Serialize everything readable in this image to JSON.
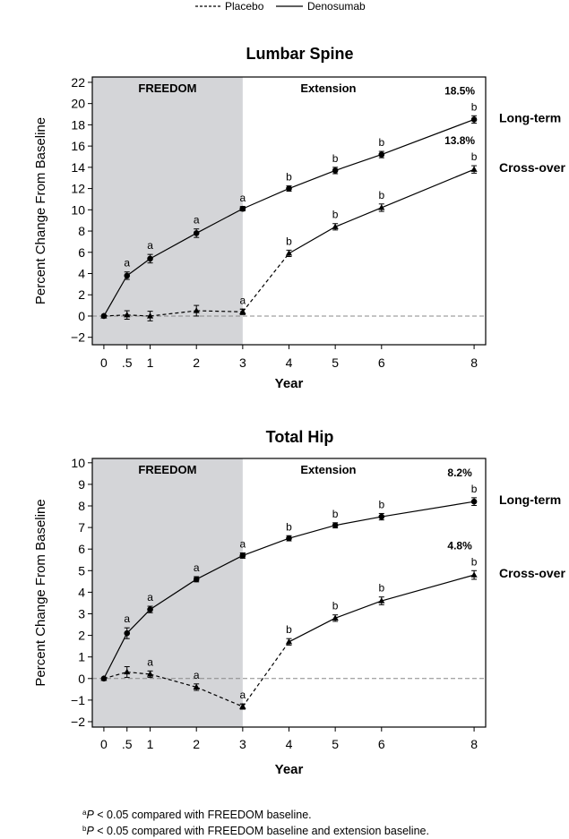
{
  "legend": {
    "placebo_label": "Placebo",
    "denosumab_label": "Denosumab"
  },
  "footnotes": {
    "a_mark": "a",
    "a_p": "P",
    "a_text": " < 0.05 compared with FREEDOM baseline.",
    "b_mark": "b",
    "b_p": "P",
    "b_text": " < 0.05 compared with FREEDOM baseline and extension baseline."
  },
  "colors": {
    "shade": "#d4d5d8",
    "line": "#000000",
    "reference_line": "#888888"
  },
  "chart_data": [
    {
      "type": "line",
      "title": "Lumbar Spine",
      "xlabel": "Year",
      "ylabel": "Percent Change From Baseline",
      "xlim": [
        -0.25,
        8.25
      ],
      "ylim": [
        -2.7,
        22.5
      ],
      "x_ticks": [
        0,
        0.5,
        1,
        2,
        3,
        4,
        5,
        6,
        8
      ],
      "x_tick_labels": [
        "0",
        ".5",
        "1",
        "2",
        "3",
        "4",
        "5",
        "6",
        "8"
      ],
      "y_ticks": [
        -2,
        0,
        2,
        4,
        6,
        8,
        10,
        12,
        14,
        16,
        18,
        20,
        22
      ],
      "y_tick_labels": [
        "−2",
        "0",
        "2",
        "4",
        "6",
        "8",
        "10",
        "12",
        "14",
        "16",
        "18",
        "20",
        "22"
      ],
      "shaded_region": {
        "x": [
          0,
          3
        ],
        "label": "FREEDOM"
      },
      "extension_label": "Extension",
      "reference_y": 0,
      "series": [
        {
          "name": "Denosumab",
          "style": "solid",
          "marker": "circle",
          "x": [
            0,
            0.5,
            1,
            2,
            3
          ],
          "y": [
            0,
            3.8,
            5.4,
            7.8,
            10.1
          ],
          "err": [
            0,
            0.35,
            0.4,
            0.4,
            0.2
          ],
          "sig": [
            "",
            "a",
            "a",
            "a",
            "a"
          ]
        },
        {
          "name": "Placebo",
          "style": "dashed",
          "marker": "triangle",
          "x": [
            0,
            0.5,
            1,
            2,
            3
          ],
          "y": [
            0,
            0.1,
            0.0,
            0.5,
            0.4
          ],
          "err": [
            0,
            0.4,
            0.45,
            0.5,
            0.25
          ],
          "sig": [
            "",
            "",
            "",
            "",
            "a"
          ]
        },
        {
          "name": "Long-term",
          "style": "solid",
          "marker": "circle",
          "x": [
            3,
            4,
            5,
            6,
            8
          ],
          "y": [
            10.1,
            12.0,
            13.7,
            15.2,
            18.5
          ],
          "err": [
            0.2,
            0.25,
            0.3,
            0.3,
            0.35
          ],
          "sig": [
            "",
            "b",
            "b",
            "b",
            "b"
          ],
          "end_value": "18.5%",
          "end_label": "Long-term"
        },
        {
          "name": "Cross-over",
          "style": "dashed-then-solid",
          "marker": "triangle",
          "x": [
            3,
            4,
            5,
            6,
            8
          ],
          "y": [
            0.4,
            5.9,
            8.4,
            10.2,
            13.8
          ],
          "err": [
            0.25,
            0.3,
            0.3,
            0.35,
            0.35
          ],
          "sig": [
            "",
            "b",
            "b",
            "b",
            "b"
          ],
          "end_value": "13.8%",
          "end_label": "Cross-over"
        }
      ]
    },
    {
      "type": "line",
      "title": "Total Hip",
      "xlabel": "Year",
      "ylabel": "Percent Change From Baseline",
      "xlim": [
        -0.25,
        8.25
      ],
      "ylim": [
        -2.25,
        10.2
      ],
      "x_ticks": [
        0,
        0.5,
        1,
        2,
        3,
        4,
        5,
        6,
        8
      ],
      "x_tick_labels": [
        "0",
        ".5",
        "1",
        "2",
        "3",
        "4",
        "5",
        "6",
        "8"
      ],
      "y_ticks": [
        -2,
        -1,
        0,
        1,
        2,
        3,
        4,
        5,
        6,
        7,
        8,
        9,
        10
      ],
      "y_tick_labels": [
        "−2",
        "−1",
        "0",
        "1",
        "2",
        "3",
        "4",
        "5",
        "6",
        "7",
        "8",
        "9",
        "10"
      ],
      "shaded_region": {
        "x": [
          0,
          3
        ],
        "label": "FREEDOM"
      },
      "extension_label": "Extension",
      "reference_y": 0,
      "series": [
        {
          "name": "Denosumab",
          "style": "solid",
          "marker": "circle",
          "x": [
            0,
            0.5,
            1,
            2,
            3
          ],
          "y": [
            0,
            2.1,
            3.2,
            4.6,
            5.7
          ],
          "err": [
            0,
            0.25,
            0.15,
            0.12,
            0.12
          ],
          "sig": [
            "",
            "a",
            "a",
            "a",
            "a"
          ]
        },
        {
          "name": "Placebo",
          "style": "dashed",
          "marker": "triangle",
          "x": [
            0,
            0.5,
            1,
            2,
            3
          ],
          "y": [
            0,
            0.3,
            0.2,
            -0.4,
            -1.3
          ],
          "err": [
            0,
            0.25,
            0.15,
            0.15,
            0.12
          ],
          "sig": [
            "",
            "",
            "a",
            "a",
            "a"
          ]
        },
        {
          "name": "Long-term",
          "style": "solid",
          "marker": "circle",
          "x": [
            3,
            4,
            5,
            6,
            8
          ],
          "y": [
            5.7,
            6.5,
            7.1,
            7.5,
            8.2
          ],
          "err": [
            0.12,
            0.12,
            0.12,
            0.15,
            0.18
          ],
          "sig": [
            "",
            "b",
            "b",
            "b",
            "b"
          ],
          "end_value": "8.2%",
          "end_label": "Long-term"
        },
        {
          "name": "Cross-over",
          "style": "dashed-then-solid",
          "marker": "triangle",
          "x": [
            3,
            4,
            5,
            6,
            8
          ],
          "y": [
            -1.3,
            1.7,
            2.8,
            3.6,
            4.8
          ],
          "err": [
            0.12,
            0.15,
            0.15,
            0.18,
            0.2
          ],
          "sig": [
            "",
            "b",
            "b",
            "b",
            "b"
          ],
          "end_value": "4.8%",
          "end_label": "Cross-over"
        }
      ]
    }
  ]
}
